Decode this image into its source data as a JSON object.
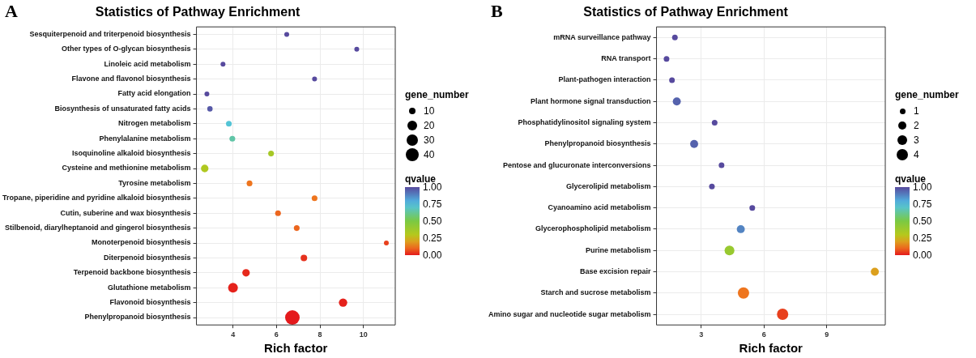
{
  "chart_data": [
    {
      "type": "bubble",
      "orientation": "horizontal",
      "title": "Statistics of Pathway Enrichment",
      "xlabel": "Rich factor",
      "legend_title": "gene_number",
      "clabel": "qvalue",
      "annotations": [
        "A"
      ],
      "grid": true,
      "marker": "circle",
      "categories": [
        "Sesquiterpenoid and triterpenoid biosynthesis",
        "Other types of O-glycan biosynthesis",
        "Linoleic acid metabolism",
        "Flavone and flavonol biosynthesis",
        "Fatty acid elongation",
        "Biosynthesis of unsaturated fatty acids",
        "Nitrogen metabolism",
        "Phenylalanine metabolism",
        "Isoquinoline alkaloid biosynthesis",
        "Cysteine and methionine metabolism",
        "Tyrosine metabolism",
        "Tropane, piperidine and pyridine alkaloid biosynthesis",
        "Cutin, suberine and wax biosynthesis",
        "Stilbenoid, diarylheptanoid and gingerol biosynthesis",
        "Monoterpenoid biosynthesis",
        "Diterpenoid biosynthesis",
        "Terpenoid backbone biosynthesis",
        "Glutathione metabolism",
        "Flavonoid biosynthesis",
        "Phenylpropanoid biosynthesis"
      ],
      "values": [
        6.47,
        9.69,
        3.54,
        7.75,
        2.8,
        2.94,
        3.81,
        3.97,
        5.75,
        2.7,
        4.76,
        7.75,
        6.07,
        6.93,
        11.05,
        7.26,
        4.6,
        4.0,
        9.06,
        6.73
      ],
      "sizes": [
        5,
        5,
        5,
        5,
        5,
        6,
        7,
        7,
        7,
        12,
        7,
        7,
        7,
        7,
        5,
        9,
        12,
        20,
        15,
        45
      ],
      "cvalues": [
        1.0,
        1.0,
        1.0,
        1.0,
        1.0,
        0.97,
        0.72,
        0.65,
        0.35,
        0.32,
        0.12,
        0.12,
        0.1,
        0.1,
        0.05,
        0.03,
        0.02,
        0.01,
        0.01,
        0.0
      ],
      "size_legend": [
        10,
        20,
        30,
        40
      ],
      "xlim": [
        2.32,
        11.46
      ],
      "xticks": [
        4,
        6,
        8,
        10
      ],
      "clim": [
        0,
        1
      ],
      "cticks": [
        {
          "value": 0,
          "label": "0.00"
        },
        {
          "value": 0.25,
          "label": "0.25"
        },
        {
          "value": 0.5,
          "label": "0.50"
        },
        {
          "value": 0.75,
          "label": "0.75"
        },
        {
          "value": 1,
          "label": "1.00"
        }
      ]
    },
    {
      "type": "bubble",
      "orientation": "horizontal",
      "title": "Statistics of Pathway Enrichment",
      "xlabel": "Rich factor",
      "legend_title": "gene_number",
      "clabel": "qvalue",
      "annotations": [
        "B"
      ],
      "grid": true,
      "marker": "circle",
      "categories": [
        "mRNA surveillance pathway",
        "RNA transport",
        "Plant-pathogen interaction",
        "Plant hormone signal transduction",
        "Phosphatidylinositol signaling system",
        "Phenylpropanoid biosynthesis",
        "Pentose and glucuronate interconversions",
        "Glycerolipid metabolism",
        "Cyanoamino acid metabolism",
        "Glycerophospholipid metabolism",
        "Purine metabolism",
        "Base excision repair",
        "Starch and sucrose metabolism",
        "Amino sugar and nucleotide sugar metabolism"
      ],
      "values": [
        1.74,
        1.34,
        1.6,
        1.83,
        3.64,
        2.66,
        3.97,
        3.51,
        5.44,
        4.89,
        4.35,
        11.3,
        5.02,
        6.89
      ],
      "sizes": [
        1,
        1,
        1,
        2,
        1,
        2,
        1,
        1,
        1,
        2,
        3,
        2,
        4,
        4
      ],
      "cvalues": [
        1.0,
        1.0,
        1.0,
        0.95,
        1.0,
        0.95,
        1.0,
        1.0,
        1.0,
        0.88,
        0.4,
        0.2,
        0.12,
        0.05
      ],
      "size_legend": [
        1,
        2,
        3,
        4
      ],
      "xlim": [
        0.86,
        11.8
      ],
      "xticks": [
        3,
        6,
        9
      ],
      "clim": [
        0,
        1
      ],
      "cticks": [
        {
          "value": 0,
          "label": "0.00"
        },
        {
          "value": 0.25,
          "label": "0.25"
        },
        {
          "value": 0.5,
          "label": "0.50"
        },
        {
          "value": 0.75,
          "label": "0.75"
        },
        {
          "value": 1,
          "label": "1.00"
        }
      ]
    }
  ]
}
